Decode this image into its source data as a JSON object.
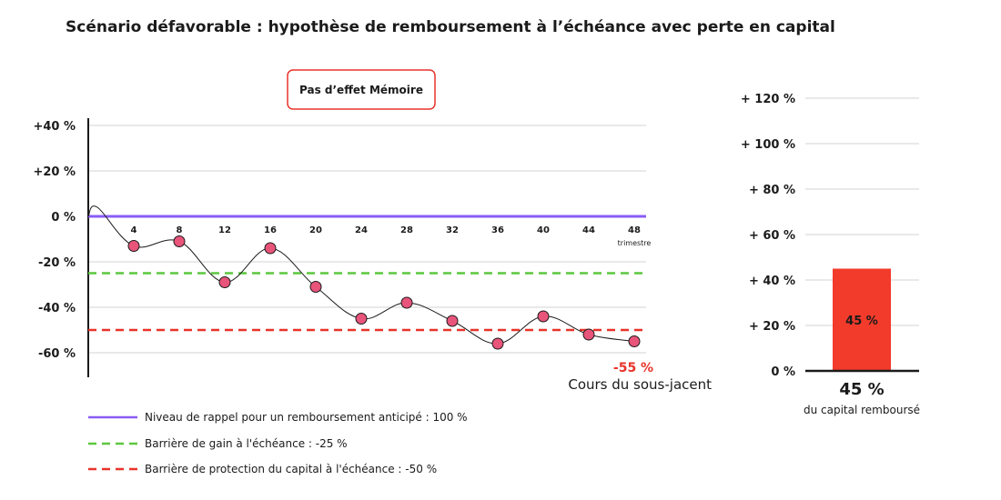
{
  "title": "Scénario défavorable : hypothèse de remboursement à l’échéance avec perte en capital",
  "memo_box": "Pas d’effet Mémoire",
  "chart_data": [
    {
      "type": "line",
      "y_tick_labels": [
        "+40 %",
        "+20 %",
        "0 %",
        "-20 %",
        "-40 %",
        "-60 %"
      ],
      "y_ticks": [
        40,
        20,
        0,
        -20,
        -40,
        -60
      ],
      "ylim": [
        -70,
        43
      ],
      "xlim": [
        0,
        49
      ],
      "x_ticks": [
        4,
        8,
        12,
        16,
        20,
        24,
        28,
        32,
        36,
        40,
        44,
        48
      ],
      "x_unit": "trimestre",
      "series": [
        {
          "name": "Cours du sous-jacent",
          "x": [
            4,
            8,
            12,
            16,
            20,
            24,
            28,
            32,
            36,
            40,
            44,
            48
          ],
          "y": [
            -13,
            -11,
            -29,
            -14,
            -31,
            -45,
            -38,
            -46,
            -56,
            -44,
            -52,
            -55
          ],
          "color": "#e8547a"
        }
      ],
      "reference_lines": [
        {
          "name": "Niveau de rappel pour un remboursement anticipé : 100 %",
          "y": 0,
          "style": "solid",
          "color": "#8a5cf5"
        },
        {
          "name": "Barrière de gain à l'échéance : -25 %",
          "y": -25,
          "style": "dashed",
          "color": "#5cc73f"
        },
        {
          "name": "Barrière de protection du capital à l'échéance : -50 %",
          "y": -50,
          "style": "dashed",
          "color": "#e8342a"
        }
      ],
      "final_value_label": "-55 %",
      "series_label": "Cours du sous-jacent",
      "grid": true
    },
    {
      "type": "bar",
      "y_tick_labels": [
        "+ 120 %",
        "+ 100 %",
        "+ 80 %",
        "+ 60 %",
        "+ 40 %",
        "+ 20 %",
        "0 %"
      ],
      "y_ticks": [
        120,
        100,
        80,
        60,
        40,
        20,
        0
      ],
      "ylim": [
        0,
        120
      ],
      "categories": [
        ""
      ],
      "values": [
        45
      ],
      "bar_label": "45 %",
      "bar_color": "#f23b2b",
      "caption_value": "45 %",
      "caption_text": "du capital remboursé",
      "grid": true
    }
  ],
  "colors": {
    "grid": "#d3d3d3",
    "axis": "#1b1b1b",
    "marker_stroke": "#1b1b1b",
    "memo_border": "#e8342a",
    "final_label": "#e8342a"
  }
}
